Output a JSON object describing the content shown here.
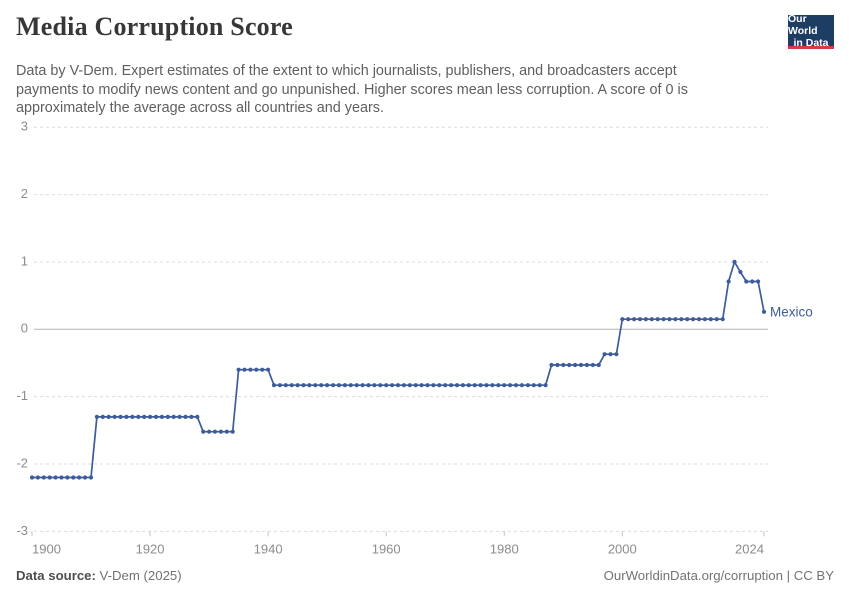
{
  "header": {
    "title": "Media Corruption Score",
    "subtitle": "Data by V-Dem. Expert estimates of the extent to which journalists, publishers, and broadcasters accept payments to modify news content and go unpunished. Higher scores mean less corruption. A score of 0 is approximately the average across all countries and years.",
    "logo": {
      "line1": "Our World",
      "line2": "in Data",
      "bg_color": "#1d3d63",
      "stripe_color": "#d63c46"
    }
  },
  "chart_data": {
    "type": "line",
    "title": "Media Corruption Score",
    "xlabel": "",
    "ylabel": "",
    "xlim": [
      1900,
      2024
    ],
    "ylim": [
      -3,
      3
    ],
    "x_ticks": [
      1900,
      1920,
      1940,
      1960,
      1980,
      2000,
      2024
    ],
    "y_ticks": [
      3,
      2,
      1,
      0,
      -1,
      -2,
      -3
    ],
    "grid": true,
    "legend_position": "end-of-line-label",
    "line_color": "#3d5c99",
    "series": [
      {
        "name": "Mexico",
        "steps": [
          {
            "start": 1900,
            "end": 1910,
            "value": -2.2
          },
          {
            "start": 1911,
            "end": 1928,
            "value": -1.3
          },
          {
            "start": 1929,
            "end": 1934,
            "value": -1.52
          },
          {
            "start": 1935,
            "end": 1940,
            "value": -0.6
          },
          {
            "start": 1941,
            "end": 1987,
            "value": -0.83
          },
          {
            "start": 1988,
            "end": 1996,
            "value": -0.53
          },
          {
            "start": 1997,
            "end": 1999,
            "value": -0.37
          },
          {
            "start": 2000,
            "end": 2017,
            "value": 0.15
          },
          {
            "start": 2018,
            "end": 2018,
            "value": 0.71
          },
          {
            "start": 2019,
            "end": 2019,
            "value": 1.0
          },
          {
            "start": 2020,
            "end": 2020,
            "value": 0.85
          },
          {
            "start": 2021,
            "end": 2023,
            "value": 0.71
          },
          {
            "start": 2024,
            "end": 2024,
            "value": 0.26
          }
        ]
      }
    ]
  },
  "footer": {
    "source_label": "Data source:",
    "source_value": " V-Dem (2025)",
    "credit": "OurWorldinData.org/corruption | CC BY"
  }
}
